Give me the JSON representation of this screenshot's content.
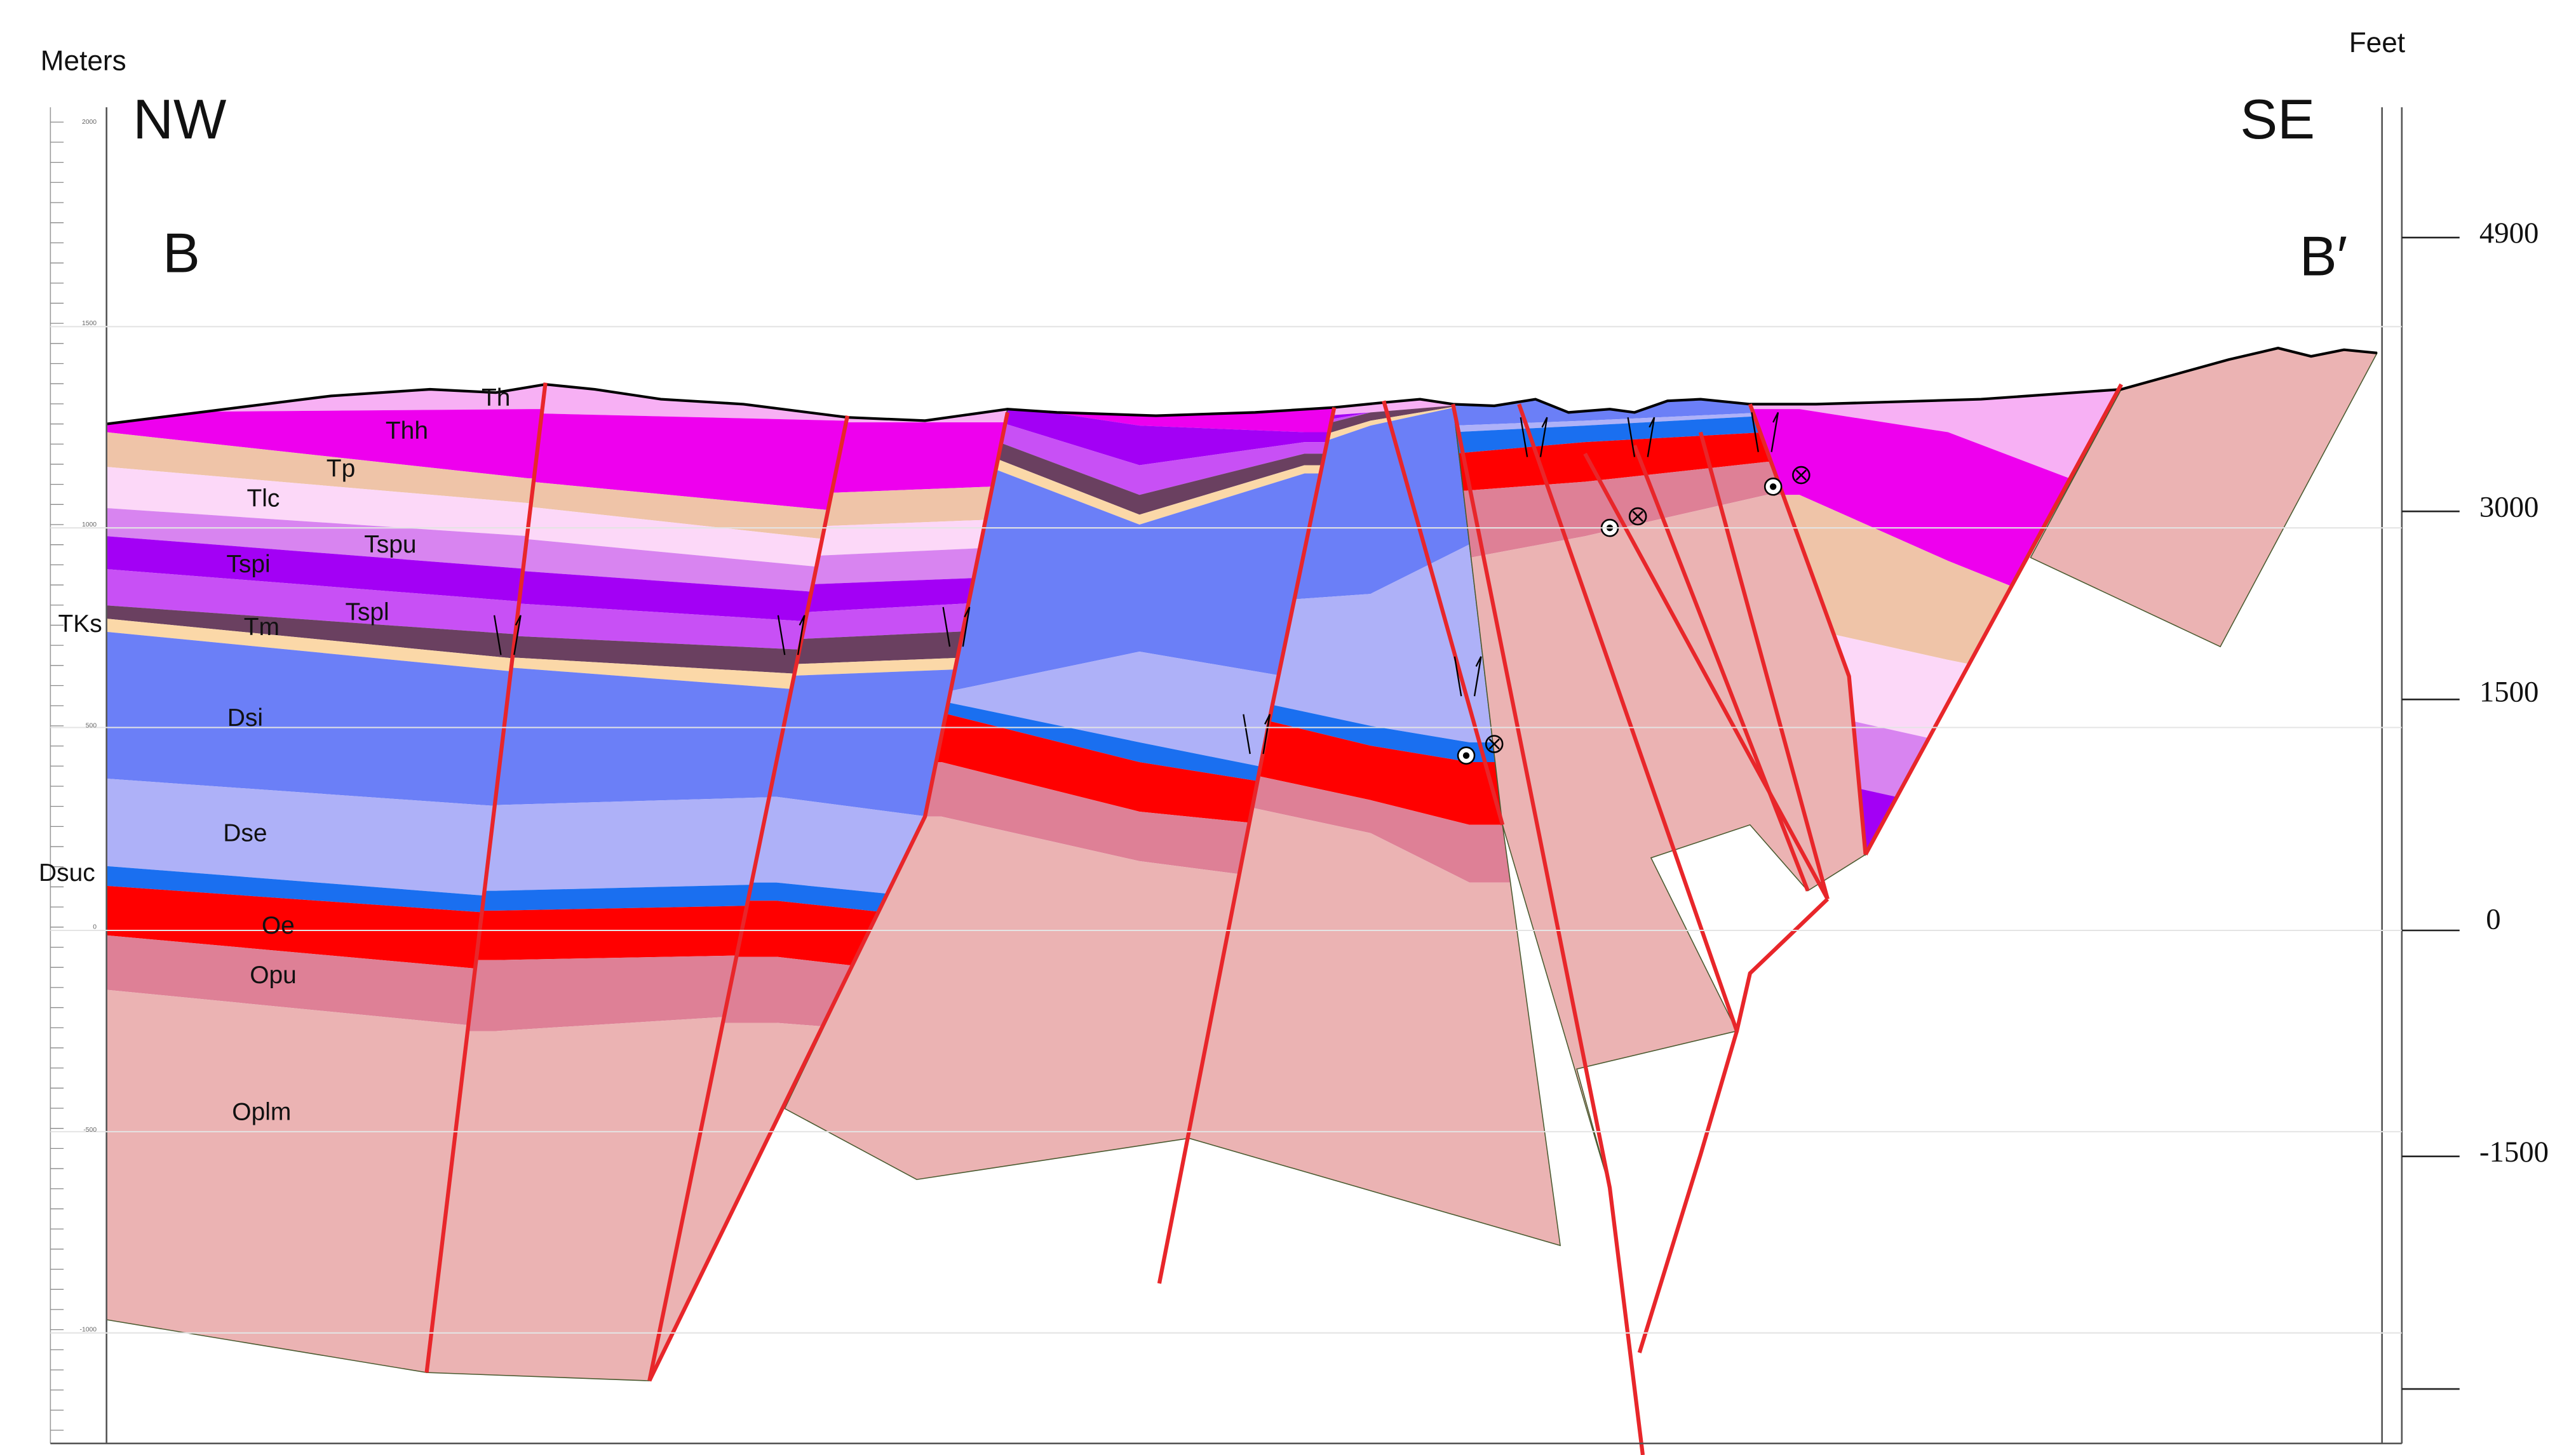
{
  "axes": {
    "left_title": "Meters",
    "right_title": "Feet",
    "meter_ticks": [
      "2000",
      "1500",
      "1000",
      "500",
      "0",
      "-500",
      "-1000"
    ],
    "feet_ticks": [
      "4900",
      "3000",
      "1500",
      "0",
      "-1500"
    ]
  },
  "section": {
    "start_direction": "NW",
    "end_direction": "SE",
    "start_label": "B",
    "end_label": "B′"
  },
  "units": [
    {
      "label": "Th"
    },
    {
      "label": "Thh"
    },
    {
      "label": "Tp"
    },
    {
      "label": "Tlc"
    },
    {
      "label": "Tspu"
    },
    {
      "label": "Tspi"
    },
    {
      "label": "Tspl"
    },
    {
      "label": "TKs"
    },
    {
      "label": "Tm"
    },
    {
      "label": "Dsi"
    },
    {
      "label": "Dse"
    },
    {
      "label": "Dsuc"
    },
    {
      "label": "Oe"
    },
    {
      "label": "Opu"
    },
    {
      "label": "Oplm"
    }
  ]
}
